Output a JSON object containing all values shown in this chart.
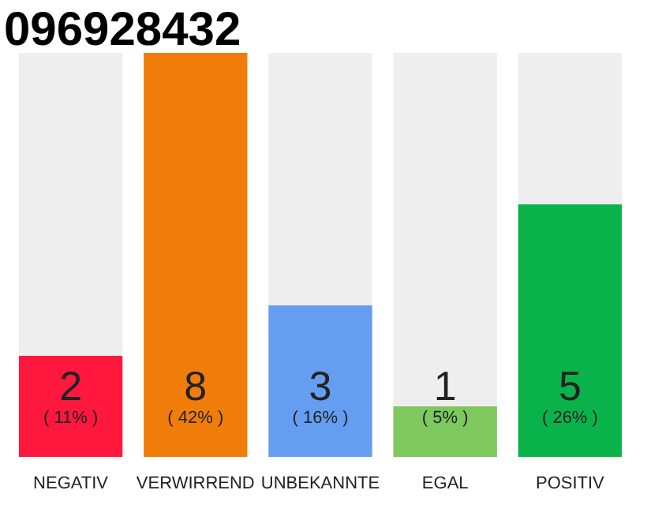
{
  "chart_data": {
    "type": "bar",
    "title": "096928432",
    "categories": [
      "NEGATIV",
      "VERWIRREND",
      "UNBEKANNTE",
      "EGAL",
      "POSITIV"
    ],
    "values": [
      2,
      8,
      3,
      1,
      5
    ],
    "colors": [
      "#ff173d",
      "#f07d0a",
      "#659ef0",
      "#7dc95e",
      "#0ab34a"
    ],
    "data_labels": true,
    "annotations": [
      "( 11% )",
      "( 42% )",
      "( 16% )",
      "( 5% )",
      "( 26% )"
    ]
  }
}
